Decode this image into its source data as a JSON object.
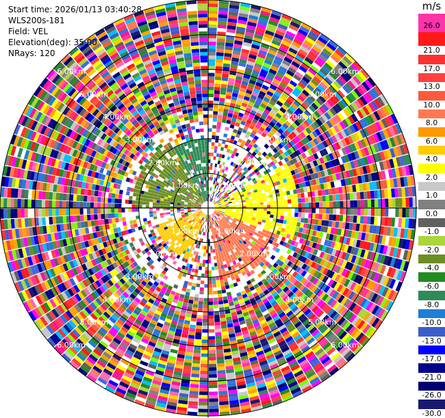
{
  "info": {
    "start_time": "Start time: 2026/01/13 03:40:28",
    "site": "WLS200s-181",
    "field": "Field: VEL",
    "elevation": "Elevation(deg): 35.00",
    "nrays": "NRays: 120"
  },
  "chart_data": {
    "type": "heatmap",
    "projection": "polar-ppi",
    "field": "VEL",
    "unit": "m/s",
    "rays": 120,
    "max_range_km": 6,
    "range_rings_km": [
      1,
      2,
      3,
      4,
      5,
      6
    ],
    "ring_labels": [
      "1.00km",
      "2.00km",
      "3.00km",
      "4.00km",
      "5.00km",
      "6.00km"
    ],
    "colorbar": {
      "ticks": [
        "26.0",
        "21.0",
        "17.0",
        "13.0",
        "10.0",
        "8.0",
        "6.0",
        "4.0",
        "2.0",
        "1.0",
        "0.0",
        "-1.0",
        "-2.0",
        "-4.0",
        "-6.0",
        "-8.0",
        "-10.0",
        "-13.0",
        "-17.0",
        "-21.0",
        "-26.0",
        "-30.0"
      ],
      "colors": [
        "#ff33aa",
        "#ff1a1a",
        "#ff3030",
        "#ff4040",
        "#ff5a3c",
        "#ff7a50",
        "#ff9900",
        "#ffcc00",
        "#ffff00",
        "#c8c8c8",
        "#808080",
        "#606060",
        "#aad63a",
        "#6b8e23",
        "#228b22",
        "#2e8b57",
        "#1e7fd6",
        "#3a5fcd",
        "#0000ff",
        "#00008b",
        "#000070",
        "#191970"
      ]
    },
    "near_field_pattern": [
      {
        "azimuth_deg": [
          270,
          330
        ],
        "range_km": [
          0,
          2.2
        ],
        "color": "#6b8e23"
      },
      {
        "azimuth_deg": [
          330,
          360
        ],
        "range_km": [
          0,
          2.0
        ],
        "color": "#2e8b57"
      },
      {
        "azimuth_deg": [
          60,
          110
        ],
        "range_km": [
          0,
          2.6
        ],
        "color": "#ffff00"
      },
      {
        "azimuth_deg": [
          110,
          170
        ],
        "range_km": [
          0,
          2.2
        ],
        "color": "#ff7a50"
      },
      {
        "azimuth_deg": [
          200,
          250
        ],
        "range_km": [
          0,
          1.6
        ],
        "color": "#ffcc00"
      }
    ]
  }
}
